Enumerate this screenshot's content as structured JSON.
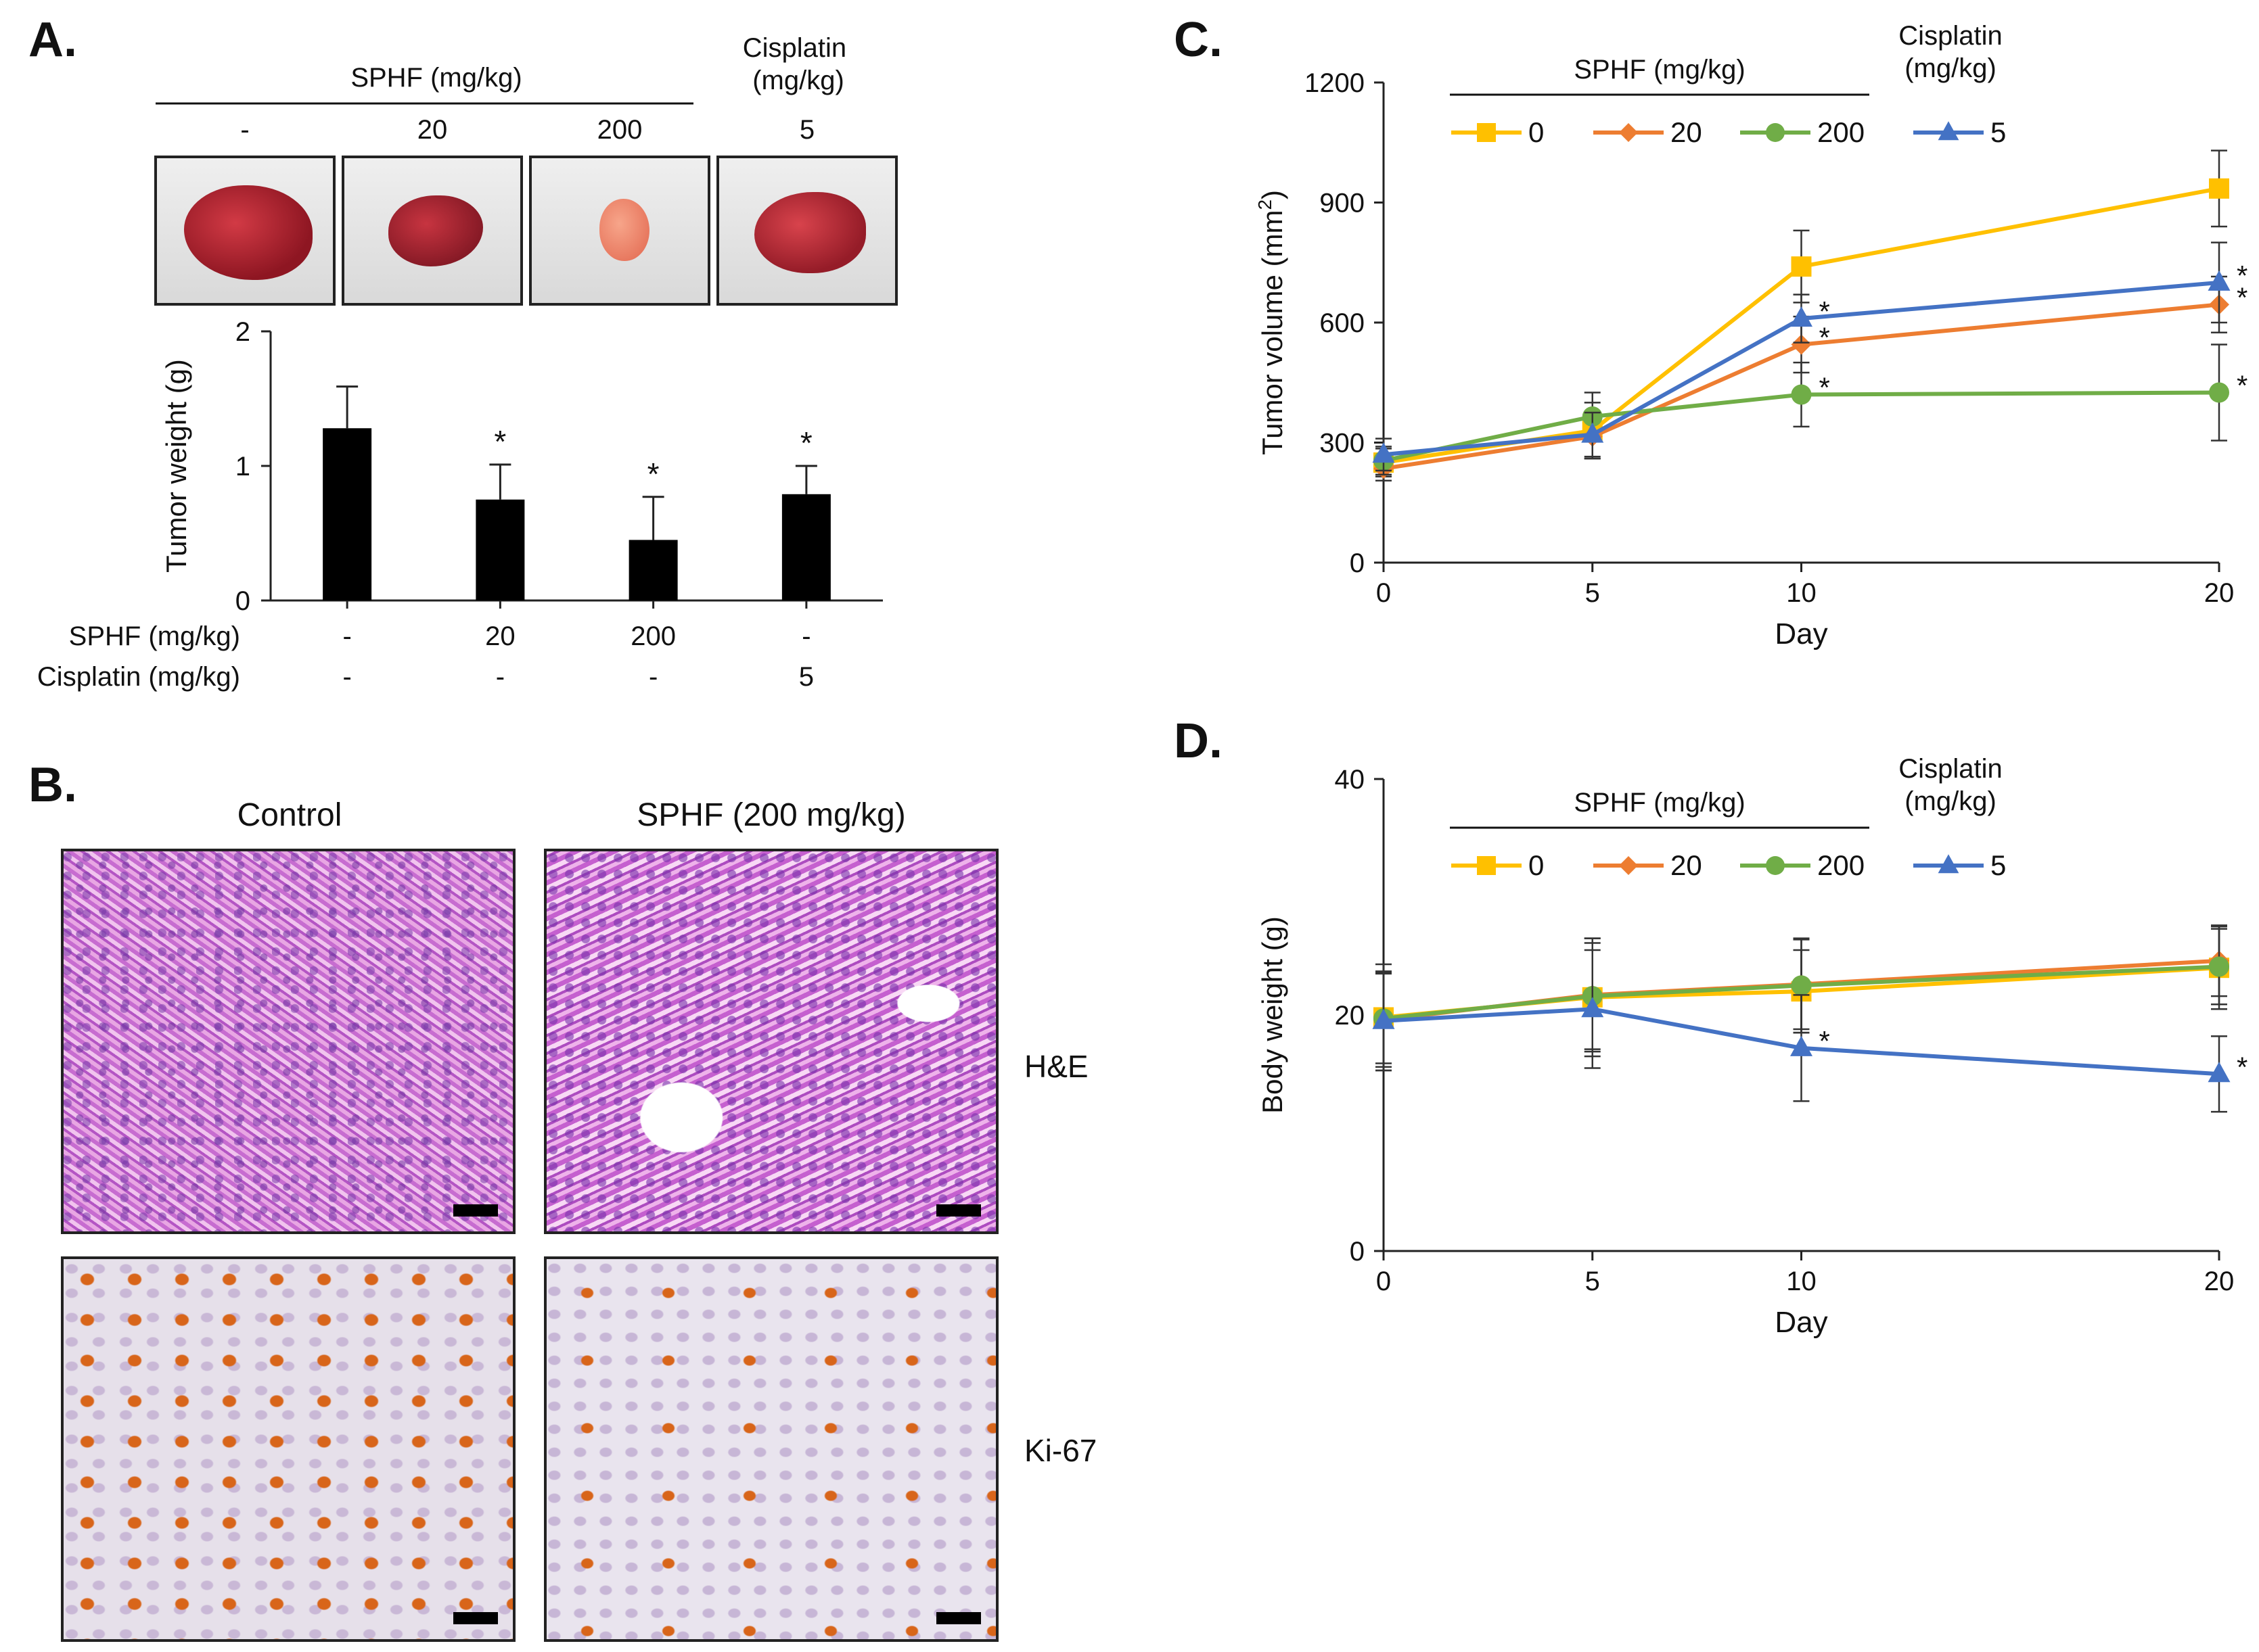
{
  "panel_labels": {
    "a": "A.",
    "b": "B.",
    "c": "C.",
    "d": "D."
  },
  "panel_a": {
    "header_sphf": "SPHF (mg/kg)",
    "header_cis": "Cisplatin\n(mg/kg)",
    "photo_labels": [
      "-",
      "20",
      "200",
      "5"
    ],
    "photo_names": [
      "control-tumor",
      "sphf-20-tumor",
      "sphf-200-tumor",
      "cisplatin-5-tumor"
    ]
  },
  "panel_b": {
    "col_labels": [
      "Control",
      "SPHF (200 mg/kg)"
    ],
    "row_labels": [
      "H&E",
      "Ki-67"
    ]
  },
  "chart_data": [
    {
      "id": "A",
      "type": "bar",
      "ylabel": "Tumor weight (g)",
      "ylim": [
        0,
        2
      ],
      "yticks": [
        0,
        1,
        2
      ],
      "categories": [
        "-|-",
        "20|-",
        "200|-",
        "-|5"
      ],
      "values": [
        1.28,
        0.75,
        0.45,
        0.79
      ],
      "errors": [
        0.31,
        0.26,
        0.32,
        0.21
      ],
      "significant": [
        false,
        true,
        true,
        true
      ],
      "row_labels": [
        "SPHF (mg/kg)",
        "Cisplatin (mg/kg)"
      ],
      "row_values": [
        [
          "-",
          "20",
          "200",
          "-"
        ],
        [
          "-",
          "-",
          "-",
          "5"
        ]
      ],
      "bar_color": "#000000"
    },
    {
      "id": "C",
      "type": "line",
      "xlabel": "Day",
      "ylabel": "Tumor volume (mm²)",
      "ylabel_main": "Tumor volume (mm",
      "ylabel_sup": "2",
      "ylabel_end": ")",
      "x": [
        0,
        5,
        10,
        20
      ],
      "xlim": [
        0,
        20
      ],
      "xticks": [
        0,
        5,
        10,
        20
      ],
      "ylim": [
        0,
        1200
      ],
      "yticks": [
        0,
        300,
        600,
        900,
        1200
      ],
      "legend_group_sphf": "SPHF (mg/kg)",
      "legend_group_cis": "Cisplatin\n(mg/kg)",
      "series": [
        {
          "name": "0",
          "color": "#FFC000",
          "marker": "square",
          "values": [
            250,
            330,
            740,
            935
          ],
          "errors": [
            35,
            70,
            90,
            95
          ],
          "sig": [
            false,
            false,
            false,
            false
          ]
        },
        {
          "name": "20",
          "color": "#ED7D31",
          "marker": "diamond",
          "values": [
            235,
            315,
            545,
            645
          ],
          "errors": [
            30,
            55,
            70,
            70
          ],
          "sig": [
            false,
            false,
            true,
            true
          ]
        },
        {
          "name": "200",
          "color": "#70AD47",
          "marker": "circle",
          "values": [
            255,
            365,
            420,
            425
          ],
          "errors": [
            35,
            60,
            80,
            120
          ],
          "sig": [
            false,
            false,
            true,
            true
          ]
        },
        {
          "name": "5",
          "color": "#4472C4",
          "marker": "triangle",
          "values": [
            270,
            320,
            610,
            700
          ],
          "errors": [
            40,
            55,
            60,
            100
          ],
          "sig": [
            false,
            false,
            true,
            true
          ]
        }
      ]
    },
    {
      "id": "D",
      "type": "line",
      "xlabel": "Day",
      "ylabel": "Body weight (g)",
      "x": [
        0,
        5,
        10,
        20
      ],
      "xlim": [
        0,
        20
      ],
      "xticks": [
        0,
        5,
        10,
        20
      ],
      "ylim": [
        0,
        40
      ],
      "yticks": [
        0,
        20,
        40
      ],
      "legend_group_sphf": "SPHF (mg/kg)",
      "legend_group_cis": "Cisplatin\n(mg/kg)",
      "series": [
        {
          "name": "0",
          "color": "#FFC000",
          "marker": "square",
          "values": [
            19.8,
            21.5,
            22.0,
            24.0
          ],
          "errors": [
            4.5,
            5.0,
            3.5,
            3.5
          ],
          "sig": [
            false,
            false,
            false,
            false
          ]
        },
        {
          "name": "20",
          "color": "#ED7D31",
          "marker": "diamond",
          "values": [
            19.6,
            21.7,
            22.6,
            24.6
          ],
          "errors": [
            4.0,
            4.8,
            3.8,
            3.0
          ],
          "sig": [
            false,
            false,
            false,
            false
          ]
        },
        {
          "name": "200",
          "color": "#70AD47",
          "marker": "circle",
          "values": [
            19.7,
            21.6,
            22.5,
            24.1
          ],
          "errors": [
            3.8,
            4.5,
            4.0,
            3.2
          ],
          "sig": [
            false,
            false,
            false,
            false
          ]
        },
        {
          "name": "5",
          "color": "#4472C4",
          "marker": "triangle",
          "values": [
            19.5,
            20.5,
            17.2,
            15.0
          ],
          "errors": [
            4.2,
            5.0,
            4.5,
            3.2
          ],
          "sig": [
            false,
            false,
            true,
            true
          ]
        }
      ]
    }
  ]
}
